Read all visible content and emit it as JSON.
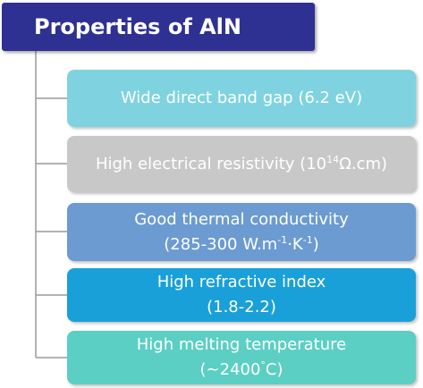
{
  "header": {
    "title": "Properties of AlN"
  },
  "nodes": [
    {
      "lines": [
        [
          {
            "text": "Wide direct band gap (6.2 eV)"
          }
        ]
      ]
    },
    {
      "lines": [
        [
          {
            "text": "High electrical resistivity (10"
          },
          {
            "sup": "14"
          },
          {
            "text": "Ω.cm)"
          }
        ]
      ]
    },
    {
      "lines": [
        [
          {
            "text": "Good thermal conductivity"
          }
        ],
        [
          {
            "text": "(285-300 W.m"
          },
          {
            "sup": "-1"
          },
          {
            "text": "·K"
          },
          {
            "sup": "-1"
          },
          {
            "text": ")"
          }
        ]
      ]
    },
    {
      "lines": [
        [
          {
            "text": "High refractive index"
          }
        ],
        [
          {
            "text": "(1.8-2.2)"
          }
        ]
      ]
    },
    {
      "lines": [
        [
          {
            "text": "High melting temperature"
          }
        ],
        [
          {
            "text": "(~2400"
          },
          {
            "sup": "°"
          },
          {
            "text": "C)"
          }
        ]
      ]
    }
  ]
}
